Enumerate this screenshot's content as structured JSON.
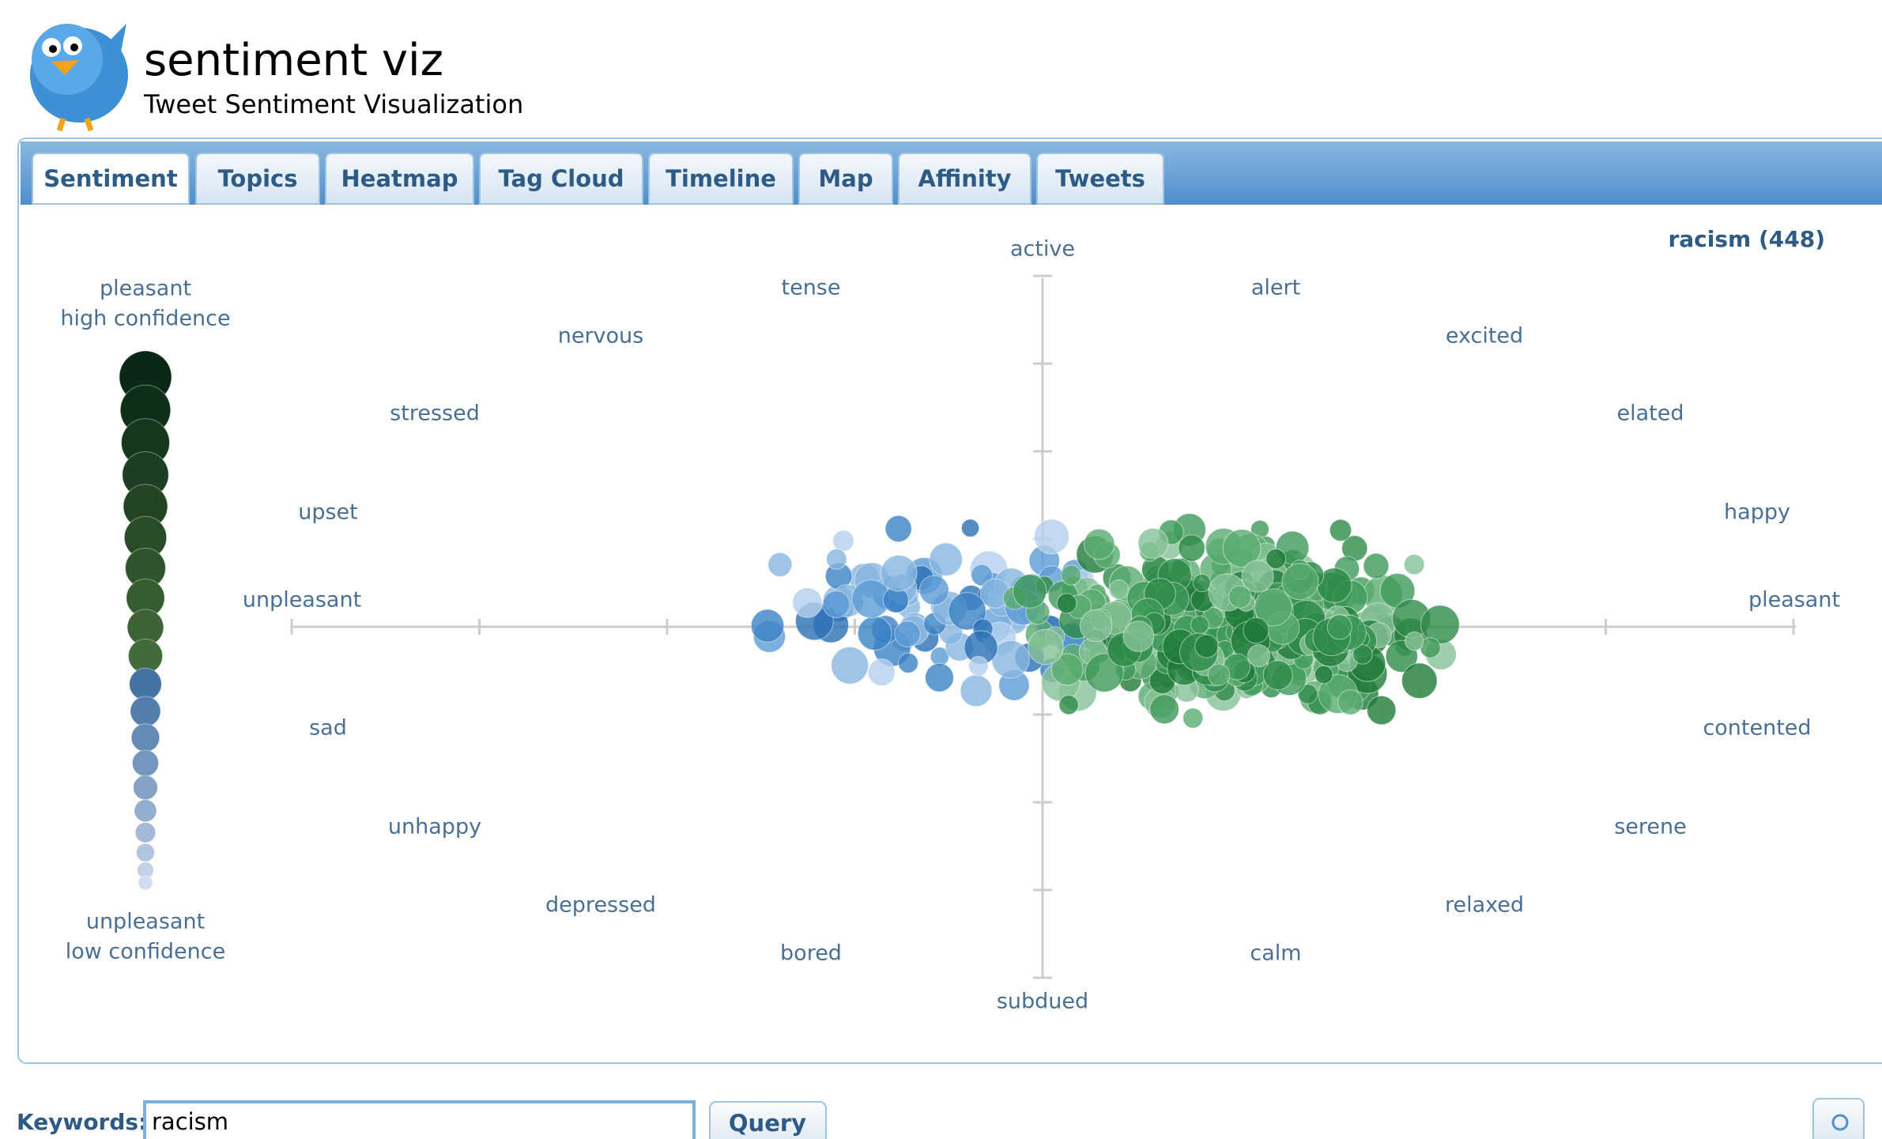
{
  "header": {
    "title": "sentiment viz",
    "subtitle": "Tweet Sentiment Visualization"
  },
  "tabs": [
    "Sentiment",
    "Topics",
    "Heatmap",
    "Tag Cloud",
    "Timeline",
    "Map",
    "Affinity",
    "Tweets"
  ],
  "result_label": "racism (448)",
  "legend": {
    "top": [
      "pleasant",
      "high confidence"
    ],
    "bottom": [
      "unpleasant",
      "low confidence"
    ]
  },
  "emotions": [
    "active",
    "subdued",
    "unpleasant",
    "pleasant",
    "tense",
    "alert",
    "nervous",
    "excited",
    "stressed",
    "elated",
    "upset",
    "happy",
    "sad",
    "contented",
    "unhappy",
    "serene",
    "depressed",
    "relaxed",
    "bored",
    "calm"
  ],
  "search": {
    "label": "Keywords:",
    "value": "racism",
    "button": "Query"
  }
}
